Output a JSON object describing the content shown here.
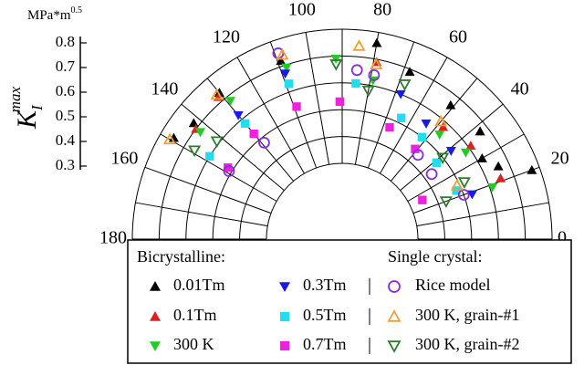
{
  "chart_data": {
    "type": "polar-scatter",
    "r_label": {
      "base": "K",
      "sub": "I",
      "sup": "max"
    },
    "r_unit": {
      "base": "MPa*m",
      "sup": "0.5"
    },
    "rlim": [
      0.3,
      0.8
    ],
    "rticks": [
      0.3,
      0.4,
      0.5,
      0.6,
      0.7,
      0.8
    ],
    "thetalim": [
      0,
      180
    ],
    "thetaticks": [
      0,
      20,
      40,
      60,
      80,
      100,
      120,
      140,
      160,
      180
    ],
    "theta_minor": [
      10,
      30,
      50,
      70,
      90,
      110,
      130,
      150,
      170
    ],
    "grid": true,
    "legend_groups": [
      "Bicrystalline:",
      "Single crystal:"
    ],
    "series": [
      {
        "name": "0.01Tm",
        "color": "#000000",
        "marker": "triangle-up",
        "theta": [
          149,
          142,
          130,
          109,
          80,
          68,
          51,
          38,
          30,
          25,
          20
        ],
        "values": [
          0.75,
          0.72,
          0.73,
          0.72,
          0.76,
          0.69,
          0.66,
          0.67,
          0.62,
          0.66,
          0.77
        ]
      },
      {
        "name": "0.1Tm",
        "color": "#e02020",
        "marker": "triangle-up",
        "theta": [
          143,
          131,
          79,
          48,
          36,
          21
        ],
        "values": [
          0.7,
          0.72,
          0.69,
          0.58,
          0.61,
          0.65
        ]
      },
      {
        "name": "300 K",
        "color": "#22cc22",
        "marker": "triangle-down",
        "theta": [
          143,
          129,
          108,
          92,
          79,
          47,
          35,
          19
        ],
        "values": [
          0.68,
          0.68,
          0.69,
          0.69,
          0.62,
          0.55,
          0.58,
          0.61
        ]
      },
      {
        "name": "0.3Tm",
        "color": "#1a1ae6",
        "marker": "triangle-down",
        "theta": [
          130,
          109,
          68,
          54,
          39,
          19
        ],
        "values": [
          0.62,
          0.67,
          0.6,
          0.55,
          0.54,
          0.53
        ]
      },
      {
        "name": "0.5Tm",
        "color": "#22ddee",
        "marker": "square",
        "theta": [
          148,
          130,
          109,
          85,
          64,
          52,
          39,
          23
        ],
        "values": [
          0.6,
          0.58,
          0.63,
          0.6,
          0.52,
          0.5,
          0.47,
          0.48
        ]
      },
      {
        "name": "0.7Tm",
        "color": "#ee22dd",
        "marker": "square",
        "theta": [
          148,
          130,
          109,
          91,
          67,
          51,
          26
        ],
        "values": [
          0.52,
          0.53,
          0.54,
          0.53,
          0.47,
          0.45,
          0.35
        ]
      },
      {
        "name": "Rice model",
        "color": "#8a2be2",
        "marker": "circle-open",
        "theta": [
          149,
          129,
          109,
          85,
          79,
          48,
          36,
          20
        ],
        "values": [
          0.51,
          0.48,
          0.75,
          0.65,
          0.64,
          0.44,
          0.43,
          0.5
        ]
      },
      {
        "name": "300 K, grain-#1",
        "color": "#f0a030",
        "marker": "triangle-up-open",
        "theta": [
          150,
          131,
          108,
          85,
          79,
          50,
          25
        ],
        "values": [
          0.76,
          0.73,
          0.74,
          0.74,
          0.68,
          0.59,
          0.49
        ]
      },
      {
        "name": "300 K, grain-#2",
        "color": "#2e7d2e",
        "marker": "triangle-down-open",
        "theta": [
          149,
          142,
          92,
          80,
          68,
          39,
          25,
          20
        ],
        "values": [
          0.66,
          0.61,
          0.67,
          0.58,
          0.64,
          0.5,
          0.52,
          0.43
        ]
      }
    ]
  }
}
